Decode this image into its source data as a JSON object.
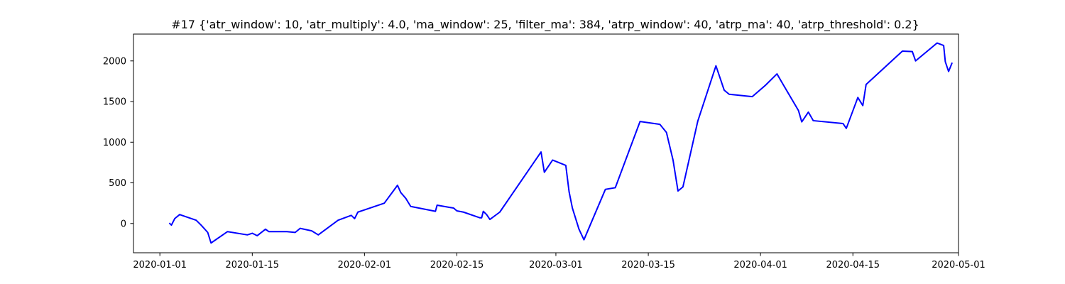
{
  "chart_data": {
    "type": "line",
    "title": "#17 {'atr_window': 10, 'atr_multiply': 4.0, 'ma_window': 25, 'filter_ma': 384, 'atrp_window': 40, 'atrp_ma': 40, 'atrp_threshold': 0.2}",
    "xlabel": "",
    "ylabel": "",
    "x_scale": "date",
    "xlim": [
      "2019-12-28",
      "2020-05-01"
    ],
    "ylim": [
      -360,
      2330
    ],
    "grid": false,
    "legend": "none",
    "series_color": "#0000ff",
    "x_ticks": [
      {
        "date": "2020-01-01",
        "label": "2020-01-01"
      },
      {
        "date": "2020-01-15",
        "label": "2020-01-15"
      },
      {
        "date": "2020-02-01",
        "label": "2020-02-01"
      },
      {
        "date": "2020-02-15",
        "label": "2020-02-15"
      },
      {
        "date": "2020-03-01",
        "label": "2020-03-01"
      },
      {
        "date": "2020-03-15",
        "label": "2020-03-15"
      },
      {
        "date": "2020-04-01",
        "label": "2020-04-01"
      },
      {
        "date": "2020-04-15",
        "label": "2020-04-15"
      },
      {
        "date": "2020-05-01",
        "label": "2020-05-01"
      }
    ],
    "y_ticks": [
      {
        "value": 0,
        "label": "0"
      },
      {
        "value": 500,
        "label": "500"
      },
      {
        "value": 1000,
        "label": "1000"
      },
      {
        "value": 1500,
        "label": "1500"
      },
      {
        "value": 2000,
        "label": "2000"
      }
    ],
    "series": [
      {
        "points": [
          [
            "2020-01-02 12:00",
            0
          ],
          [
            "2020-01-02 18:00",
            -20
          ],
          [
            "2020-01-03 06:00",
            60
          ],
          [
            "2020-01-04 00:00",
            110
          ],
          [
            "2020-01-06 12:00",
            40
          ],
          [
            "2020-01-07 06:00",
            -20
          ],
          [
            "2020-01-08 06:00",
            -110
          ],
          [
            "2020-01-08 18:00",
            -240
          ],
          [
            "2020-01-11 06:00",
            -100
          ],
          [
            "2020-01-14 06:00",
            -140
          ],
          [
            "2020-01-15 00:00",
            -120
          ],
          [
            "2020-01-15 18:00",
            -150
          ],
          [
            "2020-01-17 00:00",
            -70
          ],
          [
            "2020-01-17 12:00",
            -100
          ],
          [
            "2020-01-20 06:00",
            -100
          ],
          [
            "2020-01-21 12:00",
            -110
          ],
          [
            "2020-01-22 06:00",
            -60
          ],
          [
            "2020-01-24 00:00",
            -90
          ],
          [
            "2020-01-25 00:00",
            -140
          ],
          [
            "2020-01-28 00:00",
            40
          ],
          [
            "2020-01-30 00:00",
            100
          ],
          [
            "2020-01-30 12:00",
            60
          ],
          [
            "2020-01-31 00:00",
            140
          ],
          [
            "2020-02-04 00:00",
            250
          ],
          [
            "2020-02-06 00:00",
            470
          ],
          [
            "2020-02-06 12:00",
            380
          ],
          [
            "2020-02-07 06:00",
            310
          ],
          [
            "2020-02-08 00:00",
            210
          ],
          [
            "2020-02-11 18:00",
            150
          ],
          [
            "2020-02-12 00:00",
            225
          ],
          [
            "2020-02-13 18:00",
            200
          ],
          [
            "2020-02-14 12:00",
            190
          ],
          [
            "2020-02-15 00:00",
            155
          ],
          [
            "2020-02-16 00:00",
            140
          ],
          [
            "2020-02-18 12:00",
            70
          ],
          [
            "2020-02-18 18:00",
            70
          ],
          [
            "2020-02-19 00:00",
            150
          ],
          [
            "2020-02-19 12:00",
            110
          ],
          [
            "2020-02-20 00:00",
            50
          ],
          [
            "2020-02-21 12:00",
            140
          ],
          [
            "2020-02-27 18:00",
            880
          ],
          [
            "2020-02-28 06:00",
            630
          ],
          [
            "2020-02-29 12:00",
            780
          ],
          [
            "2020-03-02 12:00",
            715
          ],
          [
            "2020-03-03 00:00",
            390
          ],
          [
            "2020-03-03 12:00",
            190
          ],
          [
            "2020-03-04 12:00",
            -70
          ],
          [
            "2020-03-05 06:00",
            -200
          ],
          [
            "2020-03-08 12:00",
            420
          ],
          [
            "2020-03-10 00:00",
            440
          ],
          [
            "2020-03-13 18:00",
            1255
          ],
          [
            "2020-03-16 18:00",
            1220
          ],
          [
            "2020-03-17 18:00",
            1120
          ],
          [
            "2020-03-18 18:00",
            780
          ],
          [
            "2020-03-19 12:00",
            400
          ],
          [
            "2020-03-20 06:00",
            450
          ],
          [
            "2020-03-22 12:00",
            1260
          ],
          [
            "2020-03-25 06:00",
            1940
          ],
          [
            "2020-03-26 12:00",
            1640
          ],
          [
            "2020-03-27 06:00",
            1590
          ],
          [
            "2020-03-30 18:00",
            1560
          ],
          [
            "2020-04-01 18:00",
            1700
          ],
          [
            "2020-04-03 12:00",
            1840
          ],
          [
            "2020-04-04 12:00",
            1700
          ],
          [
            "2020-04-06 18:00",
            1390
          ],
          [
            "2020-04-07 06:00",
            1250
          ],
          [
            "2020-04-08 06:00",
            1370
          ],
          [
            "2020-04-09 00:00",
            1265
          ],
          [
            "2020-04-13 12:00",
            1230
          ],
          [
            "2020-04-14 00:00",
            1170
          ],
          [
            "2020-04-15 18:00",
            1550
          ],
          [
            "2020-04-16 12:00",
            1450
          ],
          [
            "2020-04-17 00:00",
            1710
          ],
          [
            "2020-04-22 12:00",
            2120
          ],
          [
            "2020-04-24 00:00",
            2115
          ],
          [
            "2020-04-24 12:00",
            2000
          ],
          [
            "2020-04-27 18:00",
            2220
          ],
          [
            "2020-04-28 18:00",
            2190
          ],
          [
            "2020-04-29 00:00",
            1990
          ],
          [
            "2020-04-29 12:00",
            1870
          ],
          [
            "2020-04-30 00:00",
            1970
          ]
        ]
      }
    ]
  }
}
